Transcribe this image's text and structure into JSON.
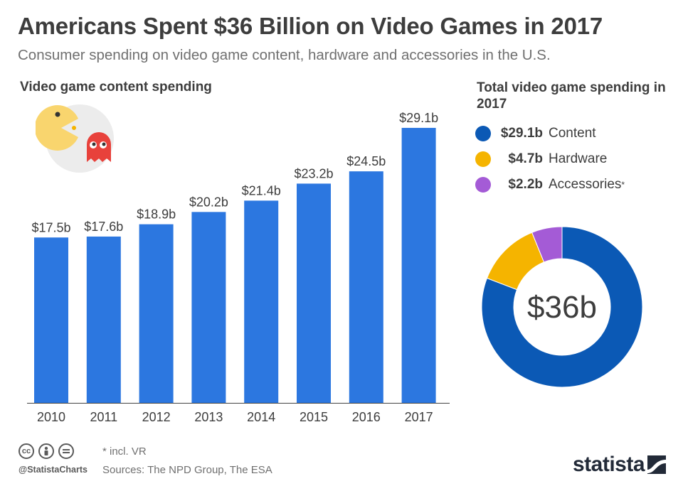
{
  "header": {
    "title": "Americans Spent $36 Billion on Video Games in 2017",
    "subtitle": "Consumer spending on video game content, hardware and accessories in the U.S."
  },
  "colors": {
    "bar": "#2c77e0",
    "content": "#0b59b5",
    "hardware": "#f5b400",
    "accessories": "#a45bd6",
    "text": "#3d3d3d",
    "muted": "#707070"
  },
  "chart_data": [
    {
      "type": "bar",
      "title": "Video game content spending",
      "categories": [
        "2010",
        "2011",
        "2012",
        "2013",
        "2014",
        "2015",
        "2016",
        "2017"
      ],
      "values": [
        17.5,
        17.6,
        18.9,
        20.2,
        21.4,
        23.2,
        24.5,
        29.1
      ],
      "value_labels": [
        "$17.5b",
        "$17.6b",
        "$18.9b",
        "$20.2b",
        "$21.4b",
        "$23.2b",
        "$24.5b",
        "$29.1b"
      ],
      "unit": "billion USD",
      "ylim": [
        0,
        30
      ],
      "grid": false
    },
    {
      "type": "pie",
      "title": "Total video game spending in 2017",
      "center_label": "$36b",
      "series": [
        {
          "name": "Content",
          "value": 29.1,
          "label": "$29.1b",
          "color": "#0b59b5"
        },
        {
          "name": "Hardware",
          "value": 4.7,
          "label": "$4.7b",
          "color": "#f5b400"
        },
        {
          "name": "Accessories",
          "value": 2.2,
          "label": "$2.2b",
          "color": "#a45bd6",
          "marker": "*"
        }
      ]
    }
  ],
  "footer": {
    "note": "* incl. VR",
    "sources": "Sources: The NPD Group, The ESA",
    "handle": "@StatistaCharts",
    "brand": "statista",
    "license_icons": [
      "cc-icon",
      "by-icon",
      "nd-icon"
    ]
  }
}
